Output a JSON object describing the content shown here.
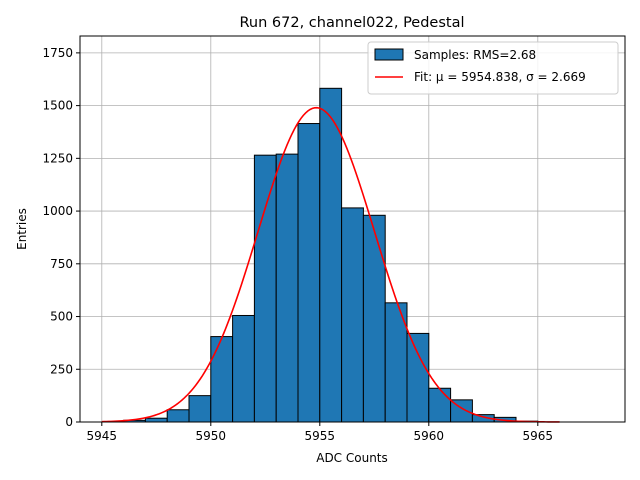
{
  "chart_data": {
    "type": "bar",
    "title": "Run 672, channel022, Pedestal",
    "xlabel": "ADC Counts",
    "ylabel": "Entries",
    "xlim": [
      5944,
      5969
    ],
    "ylim": [
      0,
      1830
    ],
    "xticks": [
      5945,
      5950,
      5955,
      5960,
      5965
    ],
    "yticks": [
      0,
      250,
      500,
      750,
      1000,
      1250,
      1500,
      1750
    ],
    "grid": true,
    "legend_position": "top-right",
    "colors": {
      "bar_fill": "#1f77b4",
      "bar_edge": "#000000",
      "fit_line": "#ff0000",
      "grid": "#b0b0b0"
    },
    "histogram": {
      "name": "Samples: RMS=2.68",
      "bins": [
        {
          "x0": 5946,
          "x1": 5947,
          "count": 8
        },
        {
          "x0": 5947,
          "x1": 5948,
          "count": 18
        },
        {
          "x0": 5948,
          "x1": 5949,
          "count": 58
        },
        {
          "x0": 5949,
          "x1": 5950,
          "count": 125
        },
        {
          "x0": 5950,
          "x1": 5951,
          "count": 405
        },
        {
          "x0": 5951,
          "x1": 5952,
          "count": 505
        },
        {
          "x0": 5952,
          "x1": 5953,
          "count": 1265
        },
        {
          "x0": 5953,
          "x1": 5954,
          "count": 1270
        },
        {
          "x0": 5954,
          "x1": 5955,
          "count": 1415
        },
        {
          "x0": 5955,
          "x1": 5956,
          "count": 1582
        },
        {
          "x0": 5956,
          "x1": 5957,
          "count": 1015
        },
        {
          "x0": 5957,
          "x1": 5958,
          "count": 980
        },
        {
          "x0": 5958,
          "x1": 5959,
          "count": 565
        },
        {
          "x0": 5959,
          "x1": 5960,
          "count": 420
        },
        {
          "x0": 5960,
          "x1": 5961,
          "count": 160
        },
        {
          "x0": 5961,
          "x1": 5962,
          "count": 105
        },
        {
          "x0": 5962,
          "x1": 5963,
          "count": 35
        },
        {
          "x0": 5963,
          "x1": 5964,
          "count": 22
        },
        {
          "x0": 5964,
          "x1": 5965,
          "count": 4
        }
      ]
    },
    "fit": {
      "name": "Fit: μ = 5954.838, σ = 2.669",
      "type": "gaussian",
      "mu": 5954.838,
      "sigma": 2.669,
      "amplitude": 1490,
      "x_range": [
        5945,
        5966
      ]
    },
    "legend_entries": [
      "Samples: RMS=2.68",
      "Fit: μ = 5954.838, σ = 2.669"
    ]
  }
}
